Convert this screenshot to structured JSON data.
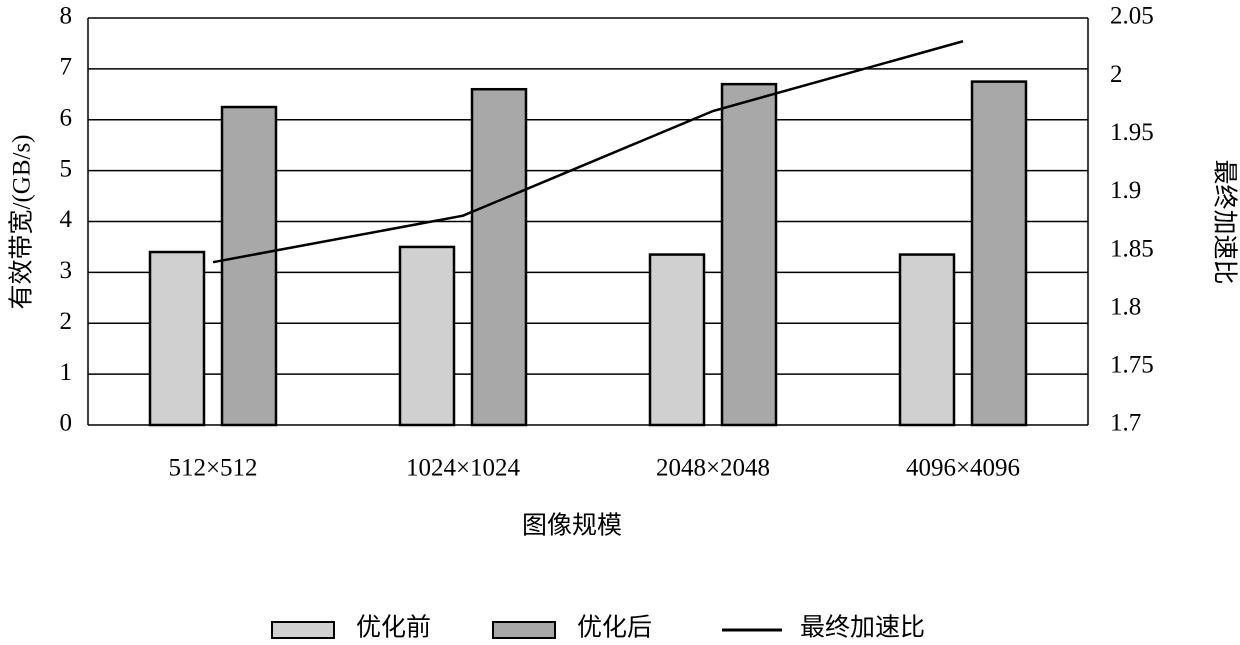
{
  "chart_data": {
    "type": "bar",
    "x_label": "图像规模",
    "y_label": "有效带宽/(GB/s)",
    "y2_label": "最终加速比",
    "categories": [
      "512×512",
      "1024×1024",
      "2048×2048",
      "4096×4096"
    ],
    "series": [
      {
        "name": "优化前",
        "color": "#d0d0d0",
        "values": [
          3.4,
          3.5,
          3.35,
          3.35
        ]
      },
      {
        "name": "优化后",
        "color": "#a8a8a8",
        "values": [
          6.25,
          6.6,
          6.7,
          6.75
        ]
      },
      {
        "name": "最终加速比",
        "color": "#000000",
        "type": "line",
        "axis": "y2",
        "values": [
          1.84,
          1.88,
          1.97,
          2.03
        ]
      }
    ],
    "ylim": [
      0,
      8
    ],
    "yticks": [
      0,
      1,
      2,
      3,
      4,
      5,
      6,
      7,
      8
    ],
    "y2lim": [
      1.7,
      2.05
    ],
    "y2ticks": [
      1.7,
      1.75,
      1.8,
      1.85,
      1.9,
      1.95,
      2,
      2.05
    ],
    "grid": true,
    "legend": "bottom"
  }
}
